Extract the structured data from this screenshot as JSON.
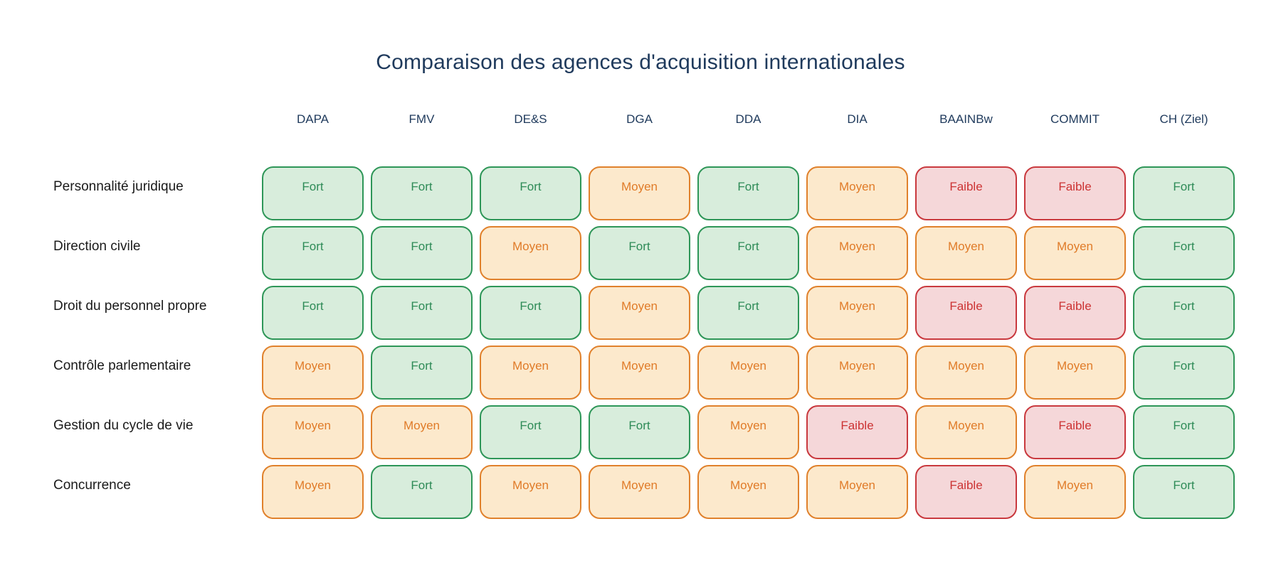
{
  "chart_data": {
    "type": "table",
    "title": "Comparaison des agences d'acquisition internationales",
    "columns": [
      "DAPA",
      "FMV",
      "DE&S",
      "DGA",
      "DDA",
      "DIA",
      "BAAINBw",
      "COMMIT",
      "CH (Ziel)"
    ],
    "rows": [
      {
        "label": "Personnalité juridique",
        "values": [
          "Fort",
          "Fort",
          "Fort",
          "Moyen",
          "Fort",
          "Moyen",
          "Faible",
          "Faible",
          "Fort"
        ]
      },
      {
        "label": "Direction civile",
        "values": [
          "Fort",
          "Fort",
          "Moyen",
          "Fort",
          "Fort",
          "Moyen",
          "Moyen",
          "Moyen",
          "Fort"
        ]
      },
      {
        "label": "Droit du personnel propre",
        "values": [
          "Fort",
          "Fort",
          "Fort",
          "Moyen",
          "Fort",
          "Moyen",
          "Faible",
          "Faible",
          "Fort"
        ]
      },
      {
        "label": "Contrôle parlementaire",
        "values": [
          "Moyen",
          "Fort",
          "Moyen",
          "Moyen",
          "Moyen",
          "Moyen",
          "Moyen",
          "Moyen",
          "Fort"
        ]
      },
      {
        "label": "Gestion du cycle de vie",
        "values": [
          "Moyen",
          "Moyen",
          "Fort",
          "Fort",
          "Moyen",
          "Faible",
          "Moyen",
          "Faible",
          "Fort"
        ]
      },
      {
        "label": "Concurrence",
        "values": [
          "Moyen",
          "Fort",
          "Moyen",
          "Moyen",
          "Moyen",
          "Moyen",
          "Faible",
          "Moyen",
          "Fort"
        ]
      }
    ],
    "value_scale": [
      "Faible",
      "Moyen",
      "Fort"
    ],
    "legend_position": "none",
    "grid": false
  },
  "levels": {
    "Fort": {
      "bg": "#d8eddc",
      "border": "#2e9658",
      "text": "#2e8b57"
    },
    "Moyen": {
      "bg": "#fce9cc",
      "border": "#e0812c",
      "text": "#e07b28"
    },
    "Faible": {
      "bg": "#f5d7d9",
      "border": "#c9393e",
      "text": "#cc3333"
    }
  },
  "colors": {
    "title": "#1f3a5c",
    "column_header": "#1f3a5c",
    "row_label": "#1a1a1a",
    "background": "#ffffff"
  }
}
